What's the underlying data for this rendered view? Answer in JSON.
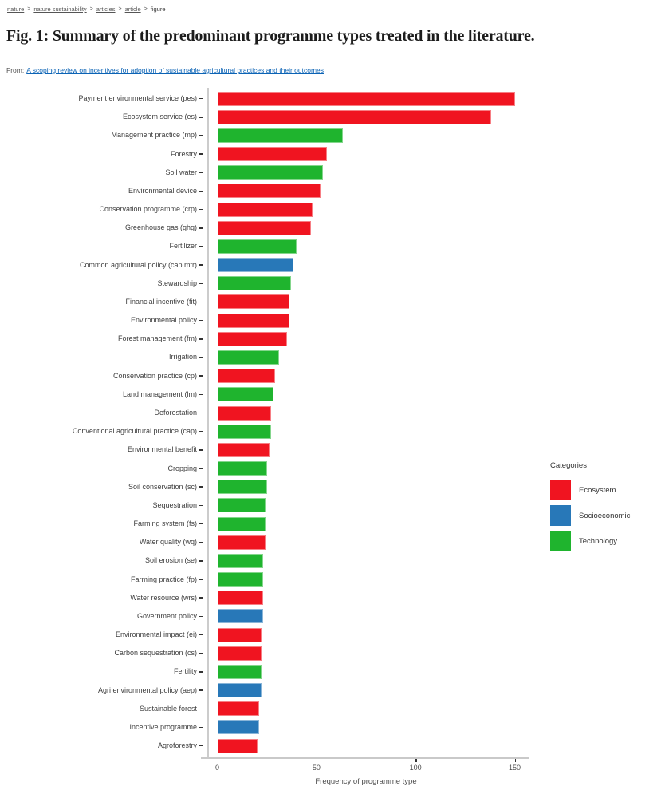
{
  "breadcrumb": {
    "separator": ">",
    "items": [
      {
        "label": "nature",
        "link": true
      },
      {
        "label": "nature sustainability",
        "link": true
      },
      {
        "label": "articles",
        "link": true
      },
      {
        "label": "article",
        "link": true
      },
      {
        "label": "figure",
        "link": false
      }
    ]
  },
  "figure": {
    "title": "Fig. 1: Summary of the predominant programme types treated in the literature.",
    "from_label": "From:",
    "source_link": "A scoping review on incentives for adoption of sustainable agricultural practices and their outcomes"
  },
  "colors": {
    "ecosystem": "#f01420",
    "socioeconomic": "#2878b8",
    "technology": "#1fb42e",
    "axis_line": "#c9c9c9",
    "axis_text": "#4d4d4d",
    "link_blue": "#0b63b5"
  },
  "chart_data": {
    "type": "bar",
    "orientation": "horizontal",
    "title": "",
    "xlabel": "Frequency of programme type",
    "ylabel": "",
    "xlim": [
      0,
      160
    ],
    "x_ticks": [
      0,
      50,
      100,
      150
    ],
    "grid": false,
    "legend": {
      "title": "Categories",
      "position": "right",
      "entries": [
        {
          "label": "Ecosystem",
          "category": "ecosystem",
          "color": "#f01420"
        },
        {
          "label": "Socioeconomic",
          "category": "socioeconomic",
          "color": "#2878b8"
        },
        {
          "label": "Technology",
          "category": "technology",
          "color": "#1fb42e"
        }
      ]
    },
    "bars": [
      {
        "label": "Payment environmental service (pes)",
        "value": 150,
        "category": "ecosystem"
      },
      {
        "label": "Ecosystem service (es)",
        "value": 138,
        "category": "ecosystem"
      },
      {
        "label": "Management practice (mp)",
        "value": 63,
        "category": "technology"
      },
      {
        "label": "Forestry",
        "value": 55,
        "category": "ecosystem"
      },
      {
        "label": "Soil water",
        "value": 53,
        "category": "technology"
      },
      {
        "label": "Environmental device",
        "value": 52,
        "category": "ecosystem"
      },
      {
        "label": "Conservation programme (crp)",
        "value": 48,
        "category": "ecosystem"
      },
      {
        "label": "Greenhouse gas (ghg)",
        "value": 47,
        "category": "ecosystem"
      },
      {
        "label": "Fertilizer",
        "value": 40,
        "category": "technology"
      },
      {
        "label": "Common agricultural policy (cap mtr)",
        "value": 38,
        "category": "socioeconomic"
      },
      {
        "label": "Stewardship",
        "value": 37,
        "category": "technology"
      },
      {
        "label": "Financial incentive (fit)",
        "value": 36,
        "category": "ecosystem"
      },
      {
        "label": "Environmental policy",
        "value": 36,
        "category": "ecosystem"
      },
      {
        "label": "Forest management (fm)",
        "value": 35,
        "category": "ecosystem"
      },
      {
        "label": "Irrigation",
        "value": 31,
        "category": "technology"
      },
      {
        "label": "Conservation practice (cp)",
        "value": 29,
        "category": "ecosystem"
      },
      {
        "label": "Land management (lm)",
        "value": 28,
        "category": "technology"
      },
      {
        "label": "Deforestation",
        "value": 27,
        "category": "ecosystem"
      },
      {
        "label": "Conventional agricultural practice (cap)",
        "value": 27,
        "category": "technology"
      },
      {
        "label": "Environmental benefit",
        "value": 26,
        "category": "ecosystem"
      },
      {
        "label": "Cropping",
        "value": 25,
        "category": "technology"
      },
      {
        "label": "Soil conservation (sc)",
        "value": 25,
        "category": "technology"
      },
      {
        "label": "Sequestration",
        "value": 24,
        "category": "technology"
      },
      {
        "label": "Farming system (fs)",
        "value": 24,
        "category": "technology"
      },
      {
        "label": "Water quality (wq)",
        "value": 24,
        "category": "ecosystem"
      },
      {
        "label": "Soil erosion (se)",
        "value": 23,
        "category": "technology"
      },
      {
        "label": "Farming practice (fp)",
        "value": 23,
        "category": "technology"
      },
      {
        "label": "Water resource (wrs)",
        "value": 23,
        "category": "ecosystem"
      },
      {
        "label": "Government policy",
        "value": 23,
        "category": "socioeconomic"
      },
      {
        "label": "Environmental impact (ei)",
        "value": 22,
        "category": "ecosystem"
      },
      {
        "label": "Carbon sequestration (cs)",
        "value": 22,
        "category": "ecosystem"
      },
      {
        "label": "Fertility",
        "value": 22,
        "category": "technology"
      },
      {
        "label": "Agri environmental policy (aep)",
        "value": 22,
        "category": "socioeconomic"
      },
      {
        "label": "Sustainable forest",
        "value": 21,
        "category": "ecosystem"
      },
      {
        "label": "Incentive programme",
        "value": 21,
        "category": "socioeconomic"
      },
      {
        "label": "Agroforestry",
        "value": 20,
        "category": "ecosystem"
      }
    ]
  }
}
